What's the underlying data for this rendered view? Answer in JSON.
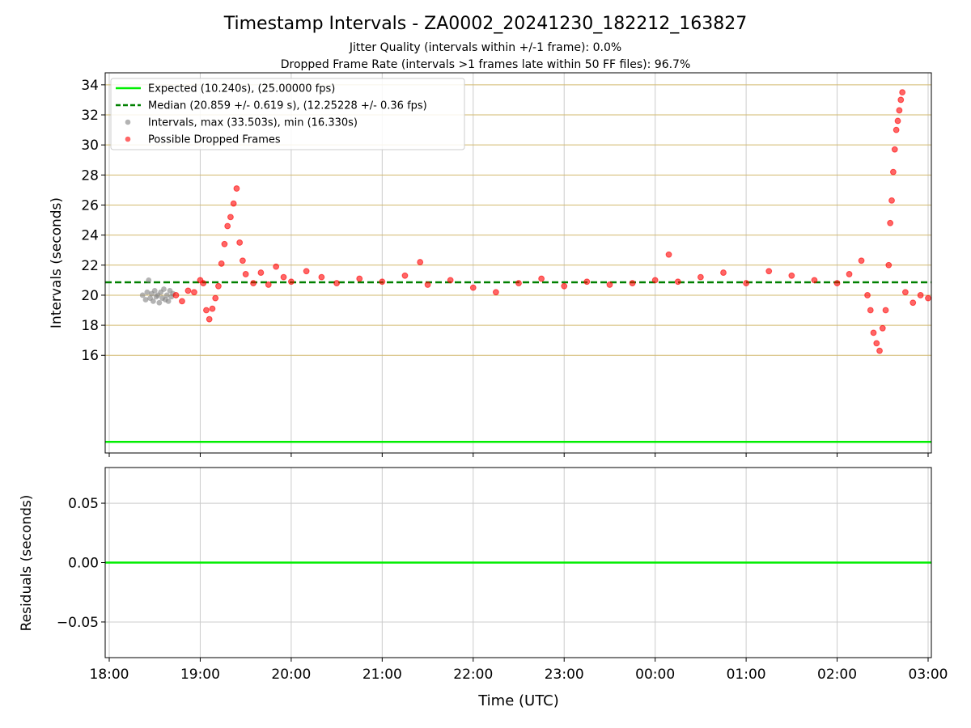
{
  "figure": {
    "title": "Timestamp Intervals - ZA0002_20241230_182212_163827",
    "subtitle_1": "Jitter Quality (intervals within +/-1 frame): 0.0%",
    "subtitle_2": "Dropped Frame Rate (intervals >1 frames late within 50 FF files): 96.7%",
    "x_axis_label": "Time (UTC)"
  },
  "colors": {
    "expected_line": "#00ee00",
    "median_line": "#008000",
    "intervals_points": "#808080",
    "dropped_points": "#ff0000",
    "horizontal_grid": "#d2b96e",
    "vertical_grid": "#cccccc"
  },
  "chart_data": [
    {
      "type": "scatter",
      "name": "intervals",
      "ylabel": "Intervals (seconds)",
      "xlim": [
        "18:00",
        "03:00"
      ],
      "x_ticks": [
        "18:00",
        "19:00",
        "20:00",
        "21:00",
        "22:00",
        "23:00",
        "00:00",
        "01:00",
        "02:00",
        "03:00"
      ],
      "y_ticks": [
        16,
        18,
        20,
        22,
        24,
        26,
        28,
        30,
        32,
        34
      ],
      "ylim": [
        9.5,
        34.8
      ],
      "grid": true,
      "legend_placement": "top-left",
      "legend": [
        "Expected (10.240s), (25.00000 fps)",
        "Median (20.859 +/- 0.619 s), (12.25228 +/- 0.36 fps)",
        "Intervals, max (33.503s), min (16.330s)",
        "Possible Dropped Frames"
      ],
      "expected_interval": 10.24,
      "median_interval": 20.859,
      "series_intervals": [
        [
          "18:22",
          20.0
        ],
        [
          "18:24",
          19.7
        ],
        [
          "18:25",
          20.2
        ],
        [
          "18:26",
          21.0
        ],
        [
          "18:27",
          19.8
        ],
        [
          "18:28",
          20.1
        ],
        [
          "18:29",
          19.6
        ],
        [
          "18:30",
          20.3
        ],
        [
          "18:31",
          19.9
        ],
        [
          "18:32",
          20.0
        ],
        [
          "18:33",
          19.5
        ],
        [
          "18:34",
          20.2
        ],
        [
          "18:35",
          19.8
        ],
        [
          "18:36",
          20.4
        ],
        [
          "18:37",
          19.7
        ],
        [
          "18:38",
          20.0
        ],
        [
          "18:39",
          19.6
        ],
        [
          "18:40",
          20.3
        ],
        [
          "18:41",
          19.9
        ],
        [
          "18:42",
          20.1
        ]
      ],
      "series_dropped": [
        [
          "18:44",
          20.0
        ],
        [
          "18:48",
          19.6
        ],
        [
          "18:52",
          20.3
        ],
        [
          "18:56",
          20.2
        ],
        [
          "19:00",
          21.0
        ],
        [
          "19:02",
          20.8
        ],
        [
          "19:04",
          19.0
        ],
        [
          "19:06",
          18.4
        ],
        [
          "19:08",
          19.1
        ],
        [
          "19:10",
          19.8
        ],
        [
          "19:12",
          20.6
        ],
        [
          "19:14",
          22.1
        ],
        [
          "19:16",
          23.4
        ],
        [
          "19:18",
          24.6
        ],
        [
          "19:20",
          25.2
        ],
        [
          "19:22",
          26.1
        ],
        [
          "19:24",
          27.1
        ],
        [
          "19:26",
          23.5
        ],
        [
          "19:28",
          22.3
        ],
        [
          "19:30",
          21.4
        ],
        [
          "19:35",
          20.8
        ],
        [
          "19:40",
          21.5
        ],
        [
          "19:45",
          20.7
        ],
        [
          "19:50",
          21.9
        ],
        [
          "19:55",
          21.2
        ],
        [
          "20:00",
          20.9
        ],
        [
          "20:10",
          21.6
        ],
        [
          "20:20",
          21.2
        ],
        [
          "20:30",
          20.8
        ],
        [
          "20:45",
          21.1
        ],
        [
          "21:00",
          20.9
        ],
        [
          "21:15",
          21.3
        ],
        [
          "21:25",
          22.2
        ],
        [
          "21:30",
          20.7
        ],
        [
          "21:45",
          21.0
        ],
        [
          "22:00",
          20.5
        ],
        [
          "22:15",
          20.2
        ],
        [
          "22:30",
          20.8
        ],
        [
          "22:45",
          21.1
        ],
        [
          "23:00",
          20.6
        ],
        [
          "23:15",
          20.9
        ],
        [
          "23:30",
          20.7
        ],
        [
          "23:45",
          20.8
        ],
        [
          "00:00",
          21.0
        ],
        [
          "00:09",
          22.7
        ],
        [
          "00:15",
          20.9
        ],
        [
          "00:30",
          21.2
        ],
        [
          "00:45",
          21.5
        ],
        [
          "01:00",
          20.8
        ],
        [
          "01:15",
          21.6
        ],
        [
          "01:30",
          21.3
        ],
        [
          "01:45",
          21.0
        ],
        [
          "02:00",
          20.8
        ],
        [
          "02:08",
          21.4
        ],
        [
          "02:16",
          22.3
        ],
        [
          "02:20",
          20.0
        ],
        [
          "02:22",
          19.0
        ],
        [
          "02:24",
          17.5
        ],
        [
          "02:26",
          16.8
        ],
        [
          "02:28",
          16.3
        ],
        [
          "02:30",
          17.8
        ],
        [
          "02:32",
          19.0
        ],
        [
          "02:34",
          22.0
        ],
        [
          "02:35",
          24.8
        ],
        [
          "02:36",
          26.3
        ],
        [
          "02:37",
          28.2
        ],
        [
          "02:38",
          29.7
        ],
        [
          "02:39",
          31.0
        ],
        [
          "02:40",
          31.6
        ],
        [
          "02:41",
          32.3
        ],
        [
          "02:42",
          33.0
        ],
        [
          "02:43",
          33.5
        ],
        [
          "02:45",
          20.2
        ],
        [
          "02:50",
          19.5
        ],
        [
          "02:55",
          20.0
        ],
        [
          "03:00",
          19.8
        ]
      ]
    },
    {
      "type": "line",
      "name": "residuals",
      "ylabel": "Residuals (seconds)",
      "y_ticks": [
        "0.05",
        "0.00",
        "−0.05"
      ],
      "ylim": [
        -0.08,
        0.08
      ],
      "grid": true,
      "values": [
        0.0,
        0.0
      ]
    }
  ]
}
